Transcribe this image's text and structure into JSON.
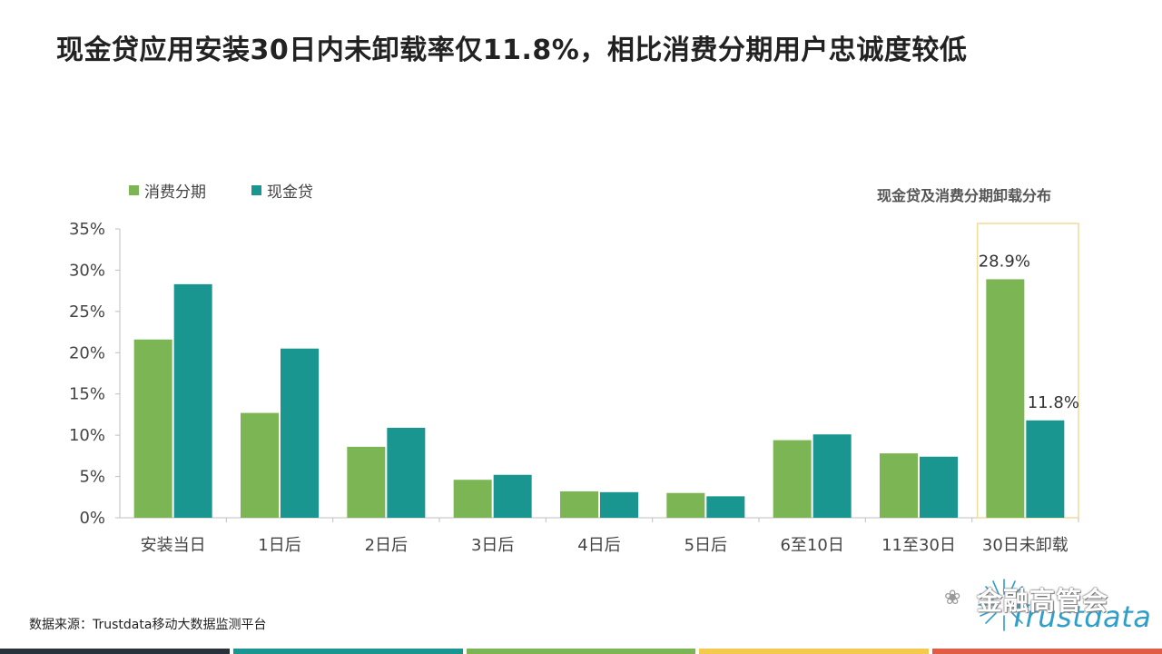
{
  "title": "现金贷应用安装30日内未卸载率仅11.8%，相比消费分期用户忠诚度较低",
  "source": "数据来源：Trustdata移动大数据监测平台",
  "logo": {
    "cn": "金融高管会",
    "en": "Trustdata",
    "wechat_icon": "wechat-icon"
  },
  "colors": {
    "consumer": "#7cb554",
    "cash": "#1a9691",
    "highlight_box": "#f0dc9a",
    "footer": [
      "#28323b",
      "#1a9691",
      "#7cb554",
      "#f3c94e",
      "#e05c45"
    ]
  },
  "chart_data": {
    "type": "bar",
    "title": "现金贷及消费分期卸载分布",
    "categories": [
      "安装当日",
      "1日后",
      "2日后",
      "3日后",
      "4日后",
      "5日后",
      "6至10日",
      "11至30日",
      "30日未卸载"
    ],
    "series": [
      {
        "name": "消费分期",
        "values": [
          21.6,
          12.7,
          8.6,
          4.6,
          3.2,
          3.0,
          9.4,
          7.8,
          28.9
        ]
      },
      {
        "name": "现金贷",
        "values": [
          28.3,
          20.5,
          10.9,
          5.2,
          3.1,
          2.6,
          10.1,
          7.4,
          11.8
        ]
      }
    ],
    "ylim": [
      0,
      35
    ],
    "yticks": [
      "0%",
      "5%",
      "10%",
      "15%",
      "20%",
      "25%",
      "30%",
      "35%"
    ],
    "data_labels": [
      {
        "category": "30日未卸载",
        "series": "消费分期",
        "text": "28.9%"
      },
      {
        "category": "30日未卸载",
        "series": "现金贷",
        "text": "11.8%"
      }
    ],
    "highlight_category": "30日未卸载",
    "legend": "top-left",
    "grid": false
  }
}
